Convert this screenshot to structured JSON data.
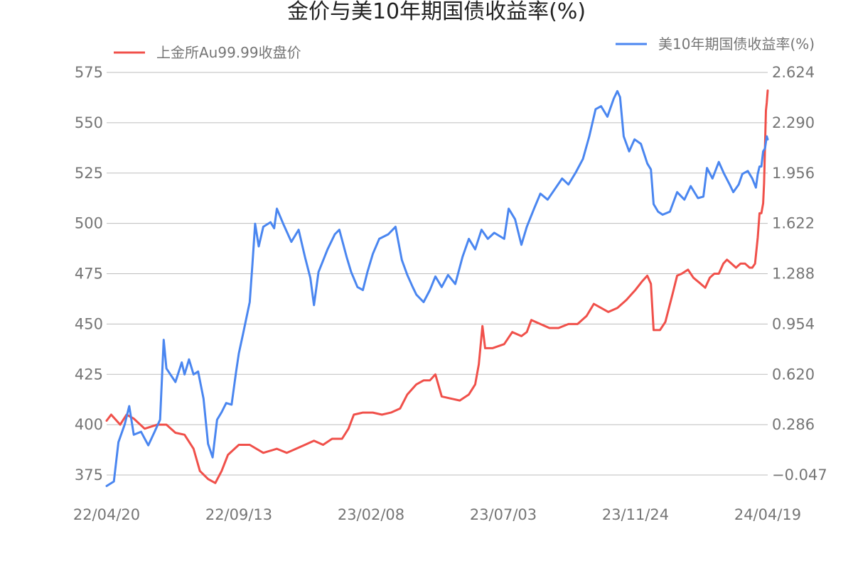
{
  "chart_data": {
    "type": "line",
    "title": "金价与美10年期国债收益率(%)",
    "x_ticks": [
      "22/04/20",
      "22/09/13",
      "23/02/08",
      "23/07/03",
      "23/11/24",
      "24/04/19"
    ],
    "x_range": [
      "22/04/20",
      "24/04/19"
    ],
    "left_axis": {
      "ticks": [
        "575",
        "550",
        "525",
        "500",
        "475",
        "450",
        "425",
        "400",
        "375"
      ],
      "ylim": [
        375,
        575
      ]
    },
    "right_axis": {
      "ticks": [
        "2.624",
        "2.290",
        "1.956",
        "1.622",
        "1.288",
        "0.954",
        "0.620",
        "0.286",
        "−0.047"
      ],
      "ylim": [
        -0.047,
        2.624
      ]
    },
    "grid": true,
    "legend_placement": "top",
    "series": [
      {
        "name": "上金所Au99.99收盘价",
        "axis": "left",
        "color": "#f0504a",
        "points": [
          [
            "22/04/20",
            402
          ],
          [
            "22/04/25",
            405
          ],
          [
            "22/05/05",
            400
          ],
          [
            "22/05/12",
            405
          ],
          [
            "22/05/20",
            403
          ],
          [
            "22/06/01",
            398
          ],
          [
            "22/06/15",
            400
          ],
          [
            "22/06/25",
            400
          ],
          [
            "22/07/05",
            396
          ],
          [
            "22/07/15",
            395
          ],
          [
            "22/07/25",
            388
          ],
          [
            "22/08/01",
            377
          ],
          [
            "22/08/10",
            373
          ],
          [
            "22/08/18",
            371
          ],
          [
            "22/08/25",
            377
          ],
          [
            "22/09/01",
            385
          ],
          [
            "22/09/13",
            390
          ],
          [
            "22/09/25",
            390
          ],
          [
            "22/10/10",
            386
          ],
          [
            "22/10/25",
            388
          ],
          [
            "22/11/05",
            386
          ],
          [
            "22/11/15",
            388
          ],
          [
            "22/11/25",
            390
          ],
          [
            "22/12/05",
            392
          ],
          [
            "22/12/15",
            390
          ],
          [
            "22/12/25",
            393
          ],
          [
            "23/01/05",
            393
          ],
          [
            "23/01/12",
            398
          ],
          [
            "23/01/18",
            405
          ],
          [
            "23/01/28",
            406
          ],
          [
            "23/02/08",
            406
          ],
          [
            "23/02/18",
            405
          ],
          [
            "23/02/28",
            406
          ],
          [
            "23/03/10",
            408
          ],
          [
            "23/03/18",
            415
          ],
          [
            "23/03/28",
            420
          ],
          [
            "23/04/05",
            422
          ],
          [
            "23/04/12",
            422
          ],
          [
            "23/04/18",
            425
          ],
          [
            "23/04/25",
            414
          ],
          [
            "23/05/05",
            413
          ],
          [
            "23/05/15",
            412
          ],
          [
            "23/05/25",
            415
          ],
          [
            "23/06/01",
            420
          ],
          [
            "23/06/05",
            430
          ],
          [
            "23/06/09",
            449
          ],
          [
            "23/06/12",
            438
          ],
          [
            "23/06/20",
            438
          ],
          [
            "23/07/03",
            440
          ],
          [
            "23/07/12",
            446
          ],
          [
            "23/07/22",
            444
          ],
          [
            "23/07/28",
            446
          ],
          [
            "23/08/02",
            452
          ],
          [
            "23/08/12",
            450
          ],
          [
            "23/08/22",
            448
          ],
          [
            "23/09/01",
            448
          ],
          [
            "23/09/12",
            450
          ],
          [
            "23/09/22",
            450
          ],
          [
            "23/10/02",
            454
          ],
          [
            "23/10/10",
            460
          ],
          [
            "23/10/18",
            458
          ],
          [
            "23/10/26",
            456
          ],
          [
            "23/11/05",
            458
          ],
          [
            "23/11/15",
            462
          ],
          [
            "23/11/25",
            467
          ],
          [
            "23/12/02",
            471
          ],
          [
            "23/12/08",
            474
          ],
          [
            "23/12/12",
            470
          ],
          [
            "23/12/15",
            447
          ],
          [
            "23/12/22",
            447
          ],
          [
            "23/12/28",
            451
          ],
          [
            "24/01/05",
            465
          ],
          [
            "24/01/10",
            474
          ],
          [
            "24/01/15",
            475
          ],
          [
            "24/01/22",
            477
          ],
          [
            "24/01/28",
            473
          ],
          [
            "24/02/05",
            470
          ],
          [
            "24/02/10",
            468
          ],
          [
            "24/02/15",
            473
          ],
          [
            "24/02/20",
            475
          ],
          [
            "24/02/25",
            475
          ],
          [
            "24/03/01",
            480
          ],
          [
            "24/03/05",
            482
          ],
          [
            "24/03/10",
            480
          ],
          [
            "24/03/15",
            478
          ],
          [
            "24/03/20",
            480
          ],
          [
            "24/03/25",
            480
          ],
          [
            "24/03/30",
            478
          ],
          [
            "24/04/02",
            478
          ],
          [
            "24/04/05",
            480
          ],
          [
            "24/04/08",
            493
          ],
          [
            "24/04/10",
            505
          ],
          [
            "24/04/12",
            505
          ],
          [
            "24/04/14",
            510
          ],
          [
            "24/04/15",
            520
          ],
          [
            "24/04/16",
            538
          ],
          [
            "24/04/17",
            556
          ],
          [
            "24/04/18",
            560
          ],
          [
            "24/04/19",
            566
          ]
        ]
      },
      {
        "name": "美10年期国债收益率(%)",
        "axis": "right",
        "color": "#4a86f0",
        "points": [
          [
            "22/04/20",
            -0.12
          ],
          [
            "22/04/28",
            -0.09
          ],
          [
            "22/05/03",
            0.17
          ],
          [
            "22/05/10",
            0.29
          ],
          [
            "22/05/15",
            0.41
          ],
          [
            "22/05/20",
            0.22
          ],
          [
            "22/05/28",
            0.24
          ],
          [
            "22/06/05",
            0.15
          ],
          [
            "22/06/12",
            0.24
          ],
          [
            "22/06/15",
            0.28
          ],
          [
            "22/06/18",
            0.32
          ],
          [
            "22/06/22",
            0.85
          ],
          [
            "22/06/25",
            0.66
          ],
          [
            "22/07/05",
            0.57
          ],
          [
            "22/07/12",
            0.7
          ],
          [
            "22/07/15",
            0.62
          ],
          [
            "22/07/20",
            0.72
          ],
          [
            "22/07/25",
            0.62
          ],
          [
            "22/07/30",
            0.64
          ],
          [
            "22/08/05",
            0.46
          ],
          [
            "22/08/10",
            0.16
          ],
          [
            "22/08/15",
            0.07
          ],
          [
            "22/08/20",
            0.32
          ],
          [
            "22/08/25",
            0.37
          ],
          [
            "22/08/30",
            0.43
          ],
          [
            "22/09/05",
            0.42
          ],
          [
            "22/09/10",
            0.64
          ],
          [
            "22/09/13",
            0.76
          ],
          [
            "22/09/18",
            0.9
          ],
          [
            "22/09/25",
            1.1
          ],
          [
            "22/09/28",
            1.35
          ],
          [
            "22/10/01",
            1.62
          ],
          [
            "22/10/05",
            1.47
          ],
          [
            "22/10/10",
            1.6
          ],
          [
            "22/10/18",
            1.63
          ],
          [
            "22/10/22",
            1.59
          ],
          [
            "22/10/25",
            1.72
          ],
          [
            "22/11/01",
            1.62
          ],
          [
            "22/11/10",
            1.5
          ],
          [
            "22/11/18",
            1.58
          ],
          [
            "22/11/25",
            1.4
          ],
          [
            "22/12/01",
            1.26
          ],
          [
            "22/12/05",
            1.08
          ],
          [
            "22/12/10",
            1.3
          ],
          [
            "22/12/20",
            1.45
          ],
          [
            "22/12/28",
            1.55
          ],
          [
            "23/01/02",
            1.58
          ],
          [
            "23/01/10",
            1.4
          ],
          [
            "23/01/15",
            1.3
          ],
          [
            "23/01/22",
            1.2
          ],
          [
            "23/01/28",
            1.18
          ],
          [
            "23/02/02",
            1.3
          ],
          [
            "23/02/08",
            1.42
          ],
          [
            "23/02/15",
            1.52
          ],
          [
            "23/02/25",
            1.55
          ],
          [
            "23/03/05",
            1.6
          ],
          [
            "23/03/12",
            1.38
          ],
          [
            "23/03/18",
            1.28
          ],
          [
            "23/03/24",
            1.2
          ],
          [
            "23/03/28",
            1.15
          ],
          [
            "23/04/05",
            1.1
          ],
          [
            "23/04/12",
            1.18
          ],
          [
            "23/04/18",
            1.27
          ],
          [
            "23/04/25",
            1.2
          ],
          [
            "23/05/02",
            1.28
          ],
          [
            "23/05/10",
            1.22
          ],
          [
            "23/05/18",
            1.4
          ],
          [
            "23/05/25",
            1.52
          ],
          [
            "23/06/01",
            1.45
          ],
          [
            "23/06/08",
            1.58
          ],
          [
            "23/06/15",
            1.52
          ],
          [
            "23/06/22",
            1.56
          ],
          [
            "23/07/03",
            1.52
          ],
          [
            "23/07/08",
            1.72
          ],
          [
            "23/07/15",
            1.65
          ],
          [
            "23/07/22",
            1.48
          ],
          [
            "23/07/28",
            1.6
          ],
          [
            "23/08/05",
            1.72
          ],
          [
            "23/08/12",
            1.82
          ],
          [
            "23/08/20",
            1.78
          ],
          [
            "23/08/28",
            1.85
          ],
          [
            "23/09/05",
            1.92
          ],
          [
            "23/09/12",
            1.88
          ],
          [
            "23/09/20",
            1.96
          ],
          [
            "23/09/28",
            2.05
          ],
          [
            "23/10/05",
            2.2
          ],
          [
            "23/10/12",
            2.38
          ],
          [
            "23/10/18",
            2.4
          ],
          [
            "23/10/25",
            2.33
          ],
          [
            "23/11/01",
            2.45
          ],
          [
            "23/11/05",
            2.5
          ],
          [
            "23/11/08",
            2.46
          ],
          [
            "23/11/12",
            2.2
          ],
          [
            "23/11/18",
            2.1
          ],
          [
            "23/11/24",
            2.18
          ],
          [
            "23/12/01",
            2.15
          ],
          [
            "23/12/08",
            2.02
          ],
          [
            "23/12/12",
            1.98
          ],
          [
            "23/12/15",
            1.75
          ],
          [
            "23/12/20",
            1.7
          ],
          [
            "23/12/25",
            1.68
          ],
          [
            "24/01/02",
            1.7
          ],
          [
            "24/01/10",
            1.83
          ],
          [
            "24/01/18",
            1.78
          ],
          [
            "24/01/25",
            1.87
          ],
          [
            "24/02/02",
            1.79
          ],
          [
            "24/02/08",
            1.8
          ],
          [
            "24/02/12",
            1.99
          ],
          [
            "24/02/18",
            1.92
          ],
          [
            "24/02/25",
            2.03
          ],
          [
            "24/03/02",
            1.95
          ],
          [
            "24/03/08",
            1.88
          ],
          [
            "24/03/12",
            1.83
          ],
          [
            "24/03/18",
            1.88
          ],
          [
            "24/03/22",
            1.95
          ],
          [
            "24/03/28",
            1.97
          ],
          [
            "24/04/02",
            1.92
          ],
          [
            "24/04/06",
            1.86
          ],
          [
            "24/04/08",
            1.95
          ],
          [
            "24/04/10",
            2.0
          ],
          [
            "24/04/12",
            2.0
          ],
          [
            "24/04/14",
            2.1
          ],
          [
            "24/04/16",
            2.12
          ],
          [
            "24/04/18",
            2.2
          ],
          [
            "24/04/19",
            2.18
          ]
        ]
      }
    ]
  }
}
